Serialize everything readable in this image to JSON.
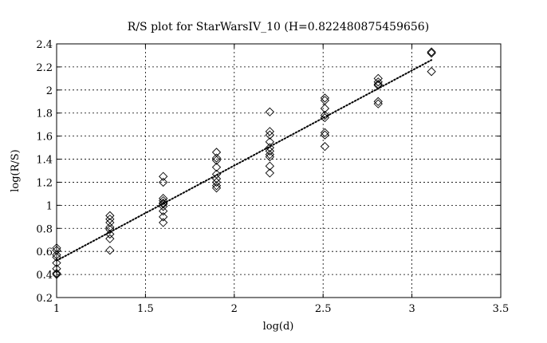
{
  "chart_data": {
    "type": "scatter",
    "title": "R/S plot for StarWarsIV_10 (H=0.822480875459656)",
    "xlabel": "log(d)",
    "ylabel": "log(R/S)",
    "xlim": [
      1,
      3.5
    ],
    "ylim": [
      0.2,
      2.4
    ],
    "xticks": [
      "1",
      "1.5",
      "2",
      "2.5",
      "3",
      "3.5"
    ],
    "yticks": [
      "0.2",
      "0.4",
      "0.6",
      "0.8",
      "1",
      "1.2",
      "1.4",
      "1.6",
      "1.8",
      "2",
      "2.2",
      "2.4"
    ],
    "grid": true,
    "marker": "diamond",
    "points": [
      [
        1.0,
        0.63
      ],
      [
        1.0,
        0.61
      ],
      [
        1.0,
        0.57
      ],
      [
        1.0,
        0.55
      ],
      [
        1.0,
        0.5
      ],
      [
        1.0,
        0.45
      ],
      [
        1.0,
        0.41
      ],
      [
        1.0,
        0.4
      ],
      [
        1.3,
        0.91
      ],
      [
        1.3,
        0.88
      ],
      [
        1.3,
        0.85
      ],
      [
        1.3,
        0.81
      ],
      [
        1.3,
        0.79
      ],
      [
        1.3,
        0.75
      ],
      [
        1.3,
        0.71
      ],
      [
        1.3,
        0.61
      ],
      [
        1.6,
        1.25
      ],
      [
        1.6,
        1.2
      ],
      [
        1.6,
        1.06
      ],
      [
        1.6,
        1.04
      ],
      [
        1.6,
        1.02
      ],
      [
        1.6,
        1.01
      ],
      [
        1.6,
        0.99
      ],
      [
        1.6,
        0.95
      ],
      [
        1.6,
        0.9
      ],
      [
        1.6,
        0.85
      ],
      [
        1.9,
        1.46
      ],
      [
        1.9,
        1.41
      ],
      [
        1.9,
        1.39
      ],
      [
        1.9,
        1.33
      ],
      [
        1.9,
        1.27
      ],
      [
        1.9,
        1.23
      ],
      [
        1.9,
        1.2
      ],
      [
        1.9,
        1.17
      ],
      [
        1.9,
        1.15
      ],
      [
        2.2,
        1.81
      ],
      [
        2.2,
        1.64
      ],
      [
        2.2,
        1.61
      ],
      [
        2.2,
        1.55
      ],
      [
        2.2,
        1.5
      ],
      [
        2.2,
        1.47
      ],
      [
        2.2,
        1.44
      ],
      [
        2.2,
        1.42
      ],
      [
        2.2,
        1.34
      ],
      [
        2.2,
        1.28
      ],
      [
        2.51,
        1.93
      ],
      [
        2.51,
        1.91
      ],
      [
        2.51,
        1.84
      ],
      [
        2.51,
        1.78
      ],
      [
        2.51,
        1.76
      ],
      [
        2.51,
        1.63
      ],
      [
        2.51,
        1.61
      ],
      [
        2.51,
        1.51
      ],
      [
        2.81,
        2.1
      ],
      [
        2.81,
        2.07
      ],
      [
        2.81,
        2.05
      ],
      [
        2.81,
        2.04
      ],
      [
        2.81,
        1.9
      ],
      [
        2.81,
        1.88
      ],
      [
        3.11,
        2.33
      ],
      [
        3.11,
        2.32
      ],
      [
        3.11,
        2.16
      ]
    ],
    "fit_line": {
      "style": "dotted",
      "x": [
        1.0,
        3.11
      ],
      "y": [
        0.52,
        2.26
      ]
    }
  }
}
